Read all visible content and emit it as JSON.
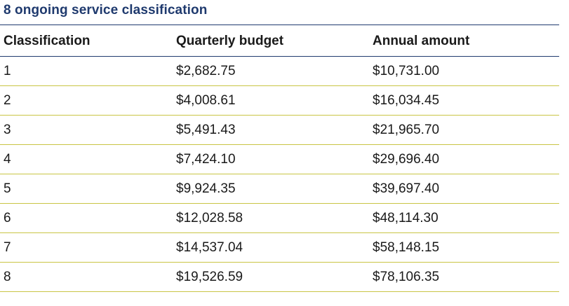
{
  "title": "8 ongoing service classification",
  "table": {
    "headers": [
      "Classification",
      "Quarterly budget",
      "Annual amount"
    ],
    "rows": [
      [
        "1",
        "$2,682.75",
        "$10,731.00"
      ],
      [
        "2",
        "$4,008.61",
        "$16,034.45"
      ],
      [
        "3",
        "$5,491.43",
        "$21,965.70"
      ],
      [
        "4",
        "$7,424.10",
        "$29,696.40"
      ],
      [
        "5",
        "$9,924.35",
        "$39,697.40"
      ],
      [
        "6",
        "$12,028.58",
        "$48,114.30"
      ],
      [
        "7",
        "$14,537.04",
        "$58,148.15"
      ],
      [
        "8",
        "$19,526.59",
        "$78,106.35"
      ]
    ]
  },
  "colors": {
    "title": "#1f3a6e",
    "header_rule": "#1f3a6e",
    "row_rule": "#c9c544"
  }
}
